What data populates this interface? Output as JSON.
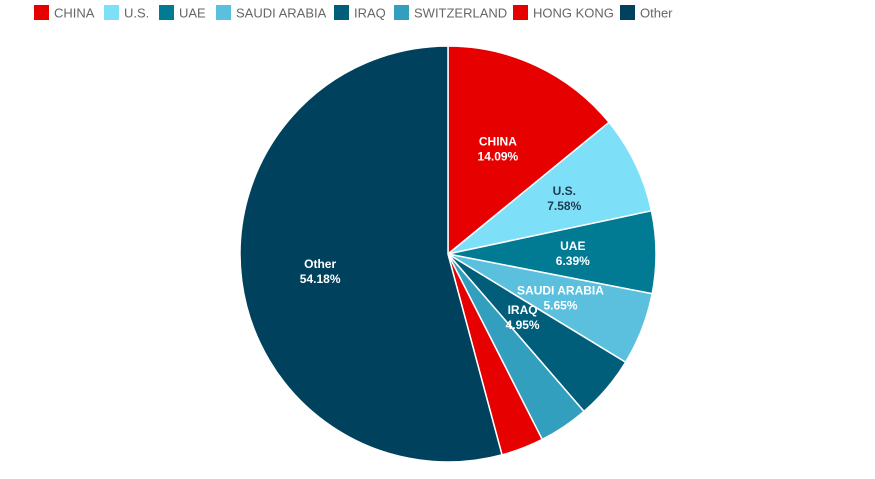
{
  "chart_data": {
    "type": "pie",
    "title": "",
    "legend_position": "top",
    "slices": [
      {
        "name": "CHINA",
        "value": 14.09,
        "value_label": "14.09%",
        "color": "#e60000",
        "label_color": "#ffffff",
        "show_label": true
      },
      {
        "name": "U.S.",
        "value": 7.58,
        "value_label": "7.58%",
        "color": "#7ddff8",
        "label_color": "#1f3c4f",
        "show_label": true
      },
      {
        "name": "UAE",
        "value": 6.39,
        "value_label": "6.39%",
        "color": "#007b93",
        "label_color": "#ffffff",
        "show_label": true
      },
      {
        "name": "SAUDI ARABIA",
        "value": 5.65,
        "value_label": "5.65%",
        "color": "#5bc0de",
        "label_color": "#ffffff",
        "show_label": true
      },
      {
        "name": "IRAQ",
        "value": 4.95,
        "value_label": "4.95%",
        "color": "#005e7a",
        "label_color": "#ffffff",
        "show_label": true
      },
      {
        "name": "SWITZERLAND",
        "value": 3.86,
        "value_label": "",
        "color": "#339fbf",
        "label_color": "#ffffff",
        "show_label": false
      },
      {
        "name": "HONG KONG",
        "value": 3.3,
        "value_label": "",
        "color": "#e60000",
        "label_color": "#ffffff",
        "show_label": false
      },
      {
        "name": "Other",
        "value": 54.18,
        "value_label": "54.18%",
        "color": "#00425e",
        "label_color": "#ffffff",
        "show_label": true
      }
    ]
  }
}
